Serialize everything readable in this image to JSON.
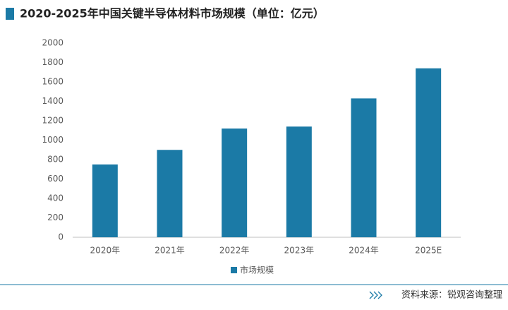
{
  "chart_data": {
    "type": "bar",
    "title": "2020-2025年中国关键半导体材料市场规模（单位：亿元）",
    "categories": [
      "2020年",
      "2021年",
      "2022年",
      "2023年",
      "2024年",
      "2025E"
    ],
    "series": [
      {
        "name": "市场规模",
        "color": "#1b7aa6",
        "values": [
          750,
          900,
          1120,
          1140,
          1430,
          1740
        ]
      }
    ],
    "ylim": [
      0,
      2000
    ],
    "yticks": [
      0,
      200,
      400,
      600,
      800,
      1000,
      1200,
      1400,
      1600,
      1800,
      2000
    ],
    "grid": false,
    "legend": "bottom",
    "source": "资料来源：锐观咨询整理"
  }
}
